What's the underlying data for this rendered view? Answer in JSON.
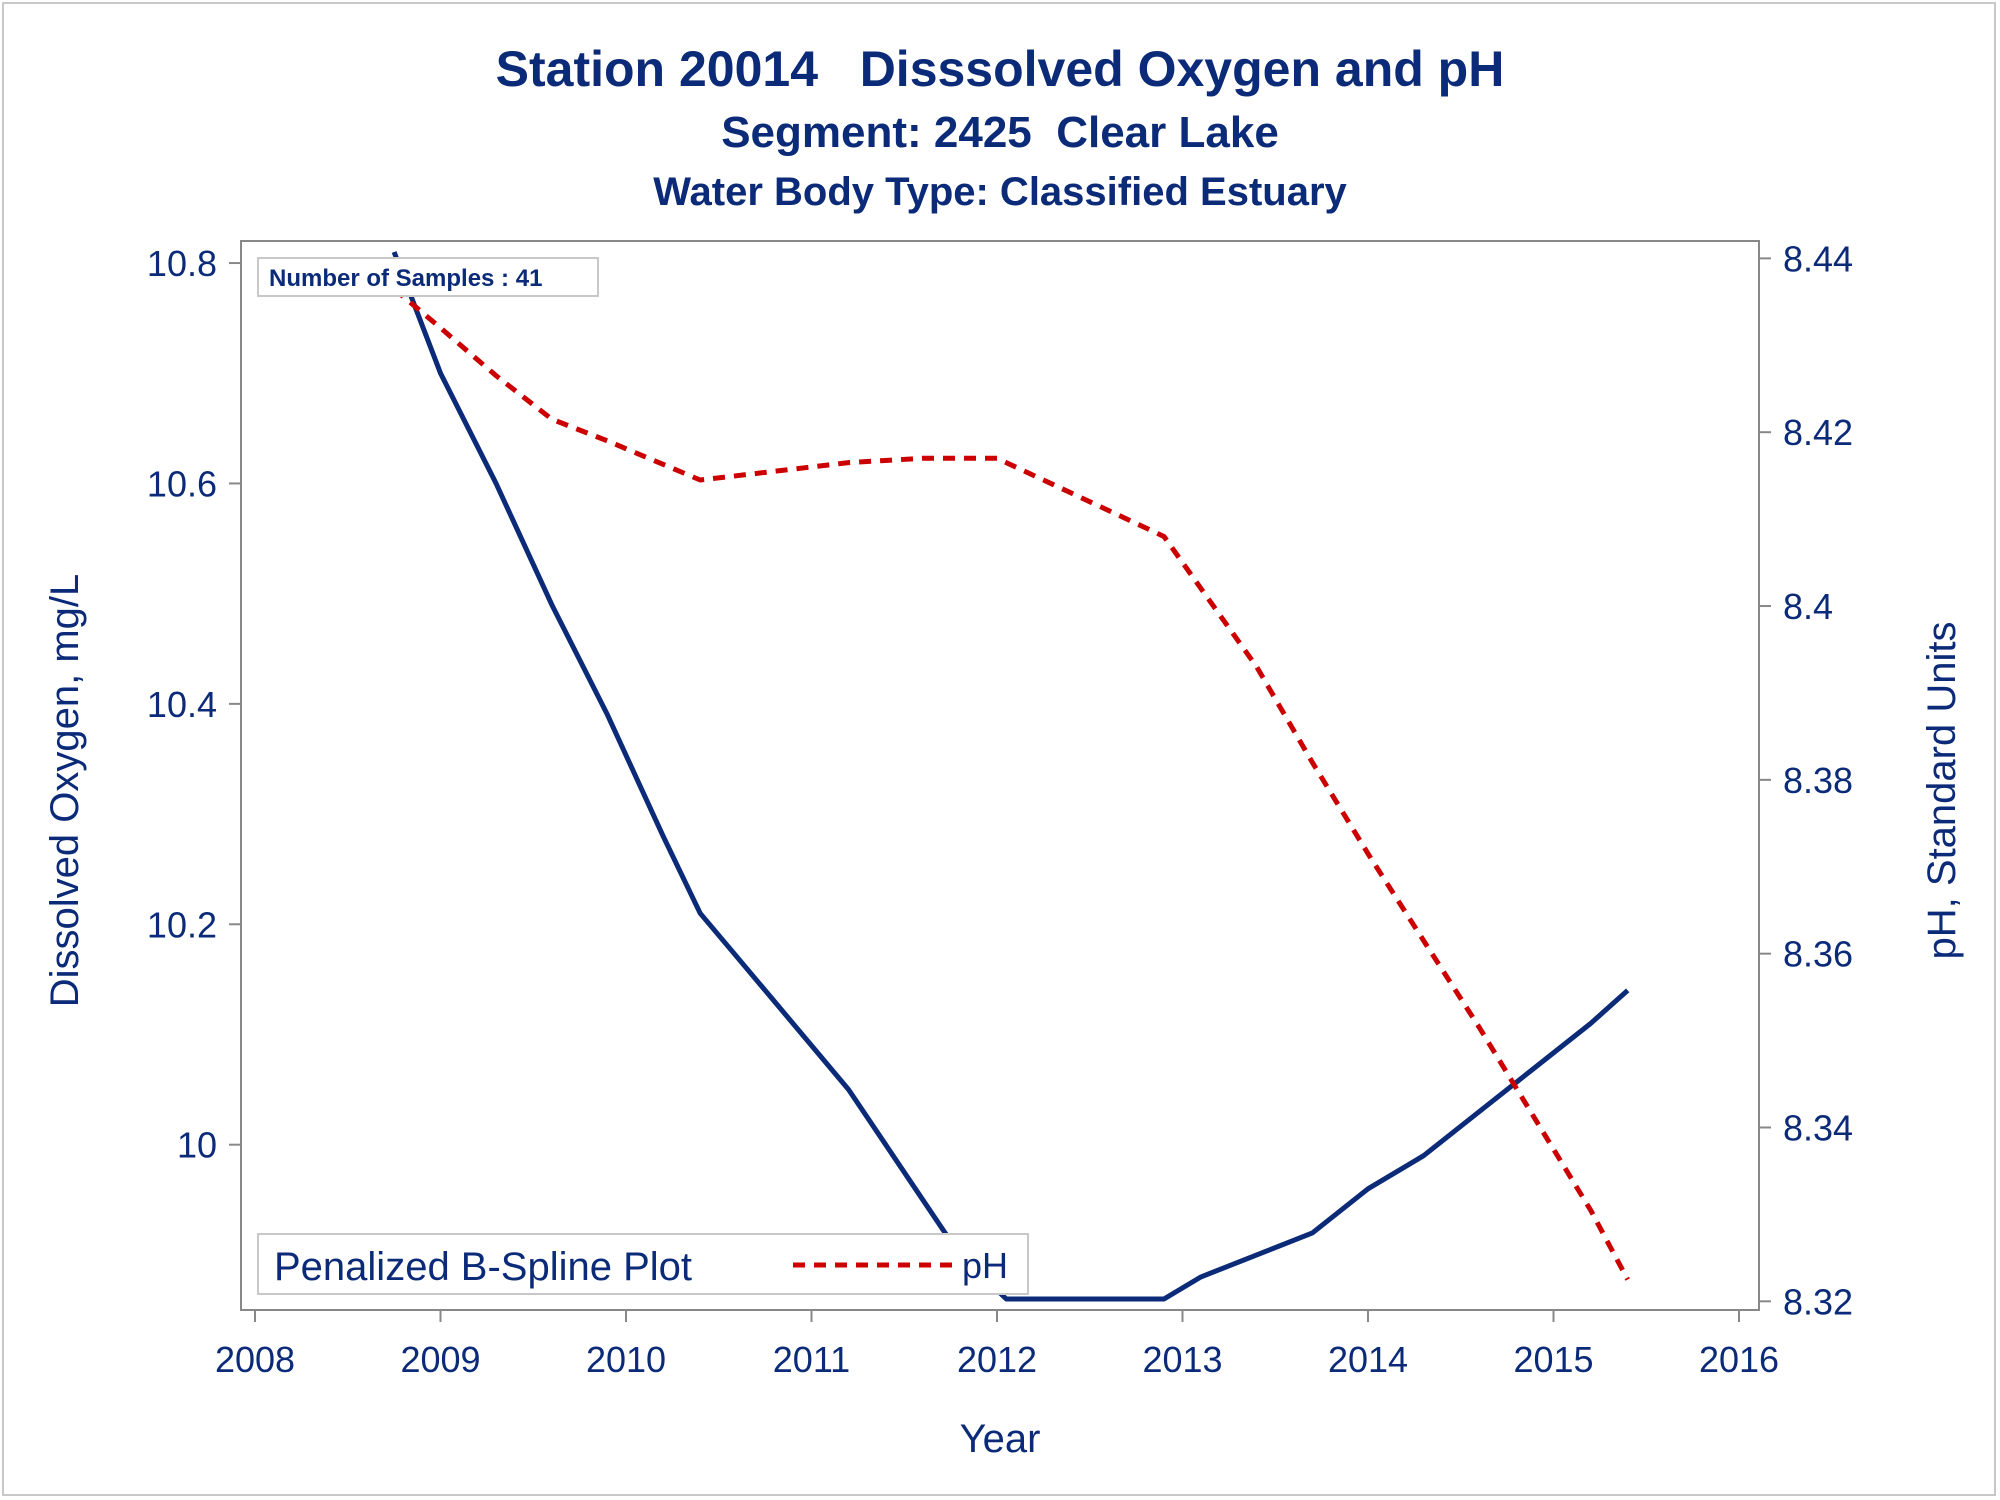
{
  "titles": {
    "line1": "Station 20014   Disssolved Oxygen and pH",
    "line2": "Segment: 2425  Clear Lake",
    "line3": "Water Body Type: Classified Estuary"
  },
  "colors": {
    "text": "#0b2a78",
    "do_line": "#0b2a78",
    "ph_line": "#cc0000",
    "axis": "#888888"
  },
  "chart_data": {
    "type": "line",
    "xlabel": "Year",
    "ylabel": "Dissolved Oxygen, mg/L",
    "y2label": "pH, Standard Units",
    "xlim": [
      2008,
      2016
    ],
    "ylim": [
      9.85,
      10.82
    ],
    "y2lim": [
      8.319,
      8.442
    ],
    "xticks": [
      "2008",
      "2009",
      "2010",
      "2011",
      "2012",
      "2013",
      "2014",
      "2015",
      "2016"
    ],
    "yticks": [
      "10",
      "10.2",
      "10.4",
      "10.6",
      "10.8"
    ],
    "y2ticks": [
      "8.32",
      "8.34",
      "8.36",
      "8.38",
      "8.4",
      "8.42",
      "8.44"
    ],
    "annotation": "Number of Samples : 41",
    "legend": {
      "title": "Penalized B-Spline Plot",
      "entries": [
        "pH"
      ],
      "position": "bottom-left"
    },
    "series": [
      {
        "axis": "left",
        "style": "solid",
        "x": [
          2008.75,
          2009.0,
          2009.3,
          2009.6,
          2009.9,
          2010.2,
          2010.4,
          2010.6,
          2010.8,
          2011.0,
          2011.2,
          2011.4,
          2011.6,
          2011.8,
          2012.05,
          2012.3,
          2012.6,
          2012.9,
          2013.1,
          2013.4,
          2013.7,
          2014.0,
          2014.3,
          2014.6,
          2014.9,
          2015.2,
          2015.4
        ],
        "y": [
          10.81,
          10.7,
          10.6,
          10.49,
          10.39,
          10.28,
          10.21,
          10.17,
          10.13,
          10.09,
          10.05,
          10.0,
          9.95,
          9.9,
          9.86,
          9.86,
          9.86,
          9.86,
          9.88,
          9.9,
          9.92,
          9.96,
          9.99,
          10.03,
          10.07,
          10.11,
          10.14
        ]
      },
      {
        "name": "pH",
        "axis": "right",
        "style": "dashed",
        "x": [
          2008.75,
          2009.0,
          2009.3,
          2009.6,
          2009.9,
          2010.4,
          2010.8,
          2011.2,
          2011.6,
          2012.0,
          2012.3,
          2012.6,
          2012.9,
          2013.1,
          2013.4,
          2013.7,
          2014.0,
          2014.3,
          2014.6,
          2014.9,
          2015.2,
          2015.4
        ],
        "y": [
          8.4365,
          8.432,
          8.4265,
          8.4215,
          8.419,
          8.4145,
          8.4155,
          8.4165,
          8.417,
          8.417,
          8.414,
          8.411,
          8.408,
          8.402,
          8.393,
          8.382,
          8.3715,
          8.3615,
          8.3515,
          8.341,
          8.3305,
          8.3225
        ]
      }
    ]
  }
}
